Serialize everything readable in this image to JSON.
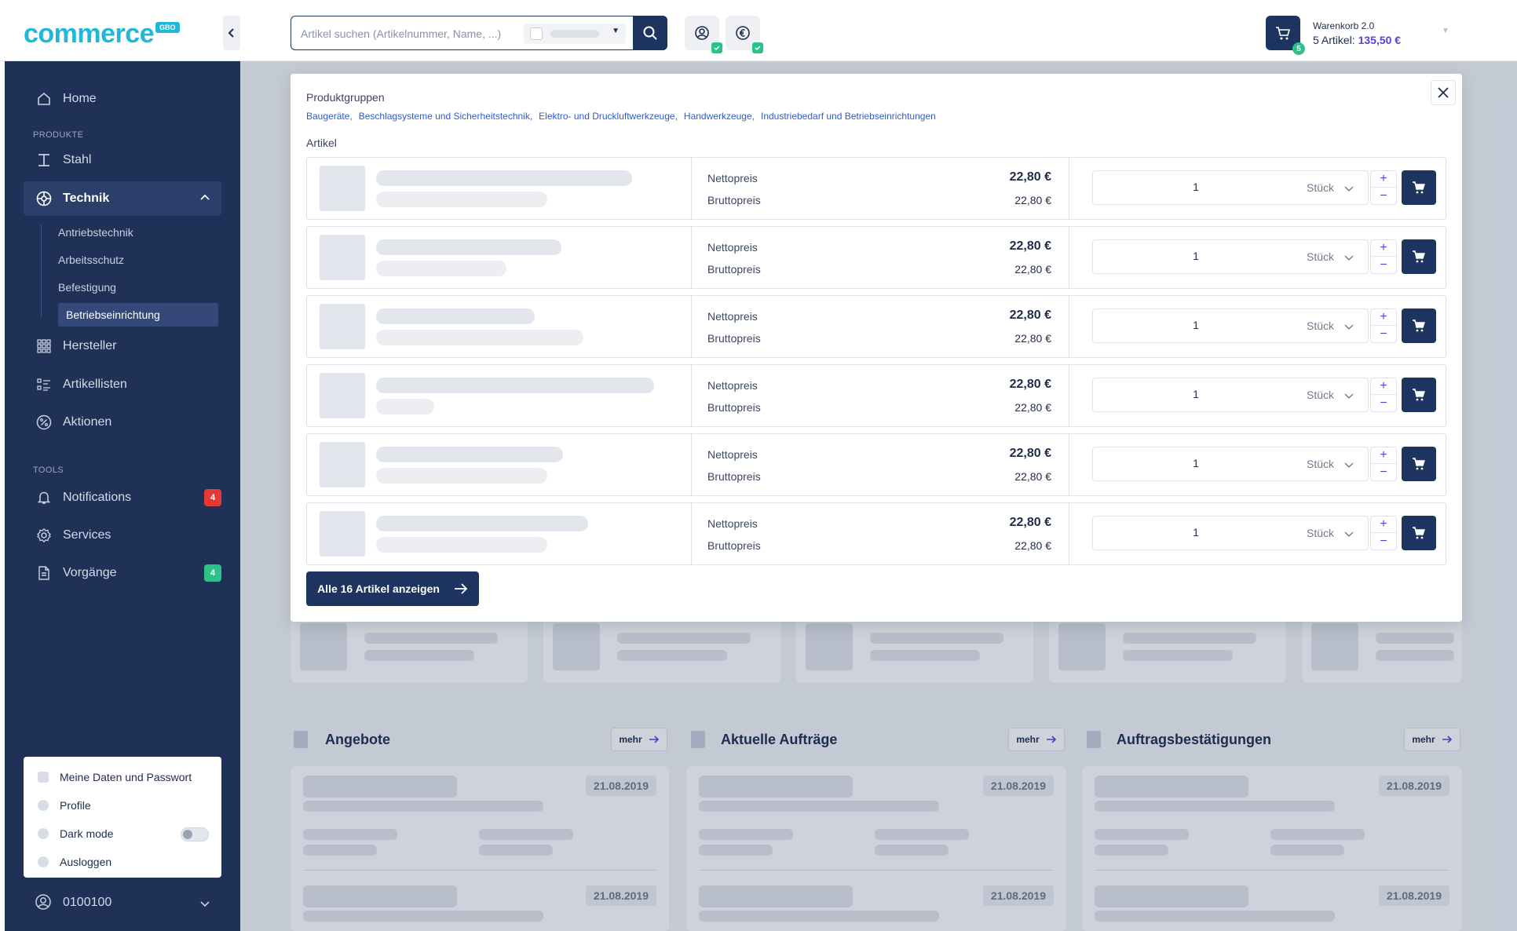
{
  "header": {
    "logo_text": "commerce",
    "logo_badge": "GBO",
    "search": {
      "placeholder": "Artikel suchen (Artikelnummer, Name, ...)"
    },
    "cart": {
      "title": "Warenkorb 2.0",
      "summary_prefix": "5 Artikel: ",
      "amount": "135,50 €",
      "count": "5"
    },
    "icons": [
      "user-circle-icon",
      "euro-circle-icon"
    ]
  },
  "sidebar": {
    "home": "Home",
    "section_products": "PRODUKTE",
    "stahl": "Stahl",
    "technik": "Technik",
    "sub": [
      "Antriebstechnik",
      "Arbeitsschutz",
      "Befestigung",
      "Betriebseinrichtung"
    ],
    "hersteller": "Hersteller",
    "artikellisten": "Artikellisten",
    "aktionen": "Aktionen",
    "section_tools": "TOOLS",
    "notifications": "Notifications",
    "notifications_badge": "4",
    "services": "Services",
    "vorgaenge": "Vorgänge",
    "vorgaenge_badge": "4",
    "user_menu": [
      "Meine Daten und Passwort",
      "Profile",
      "Dark mode",
      "Ausloggen"
    ],
    "user_id": "0100100"
  },
  "modal": {
    "groups_heading": "Produktgruppen",
    "groups": [
      "Baugeräte,",
      "Beschlagsysteme und Sicherheitstechnik,",
      "Elektro- und Druckluftwerkzeuge,",
      "Handwerkzeuge,",
      "Industriebedarf und Betriebseinrichtungen"
    ],
    "articles_heading": "Artikel",
    "net_label": "Nettopreis",
    "gross_label": "Bruttopreis",
    "rows": [
      {
        "net": "22,80 €",
        "gross": "22,80 €",
        "qty": "1",
        "unit": "Stück"
      },
      {
        "net": "22,80 €",
        "gross": "22,80 €",
        "qty": "1",
        "unit": "Stück"
      },
      {
        "net": "22,80 €",
        "gross": "22,80 €",
        "qty": "1",
        "unit": "Stück"
      },
      {
        "net": "22,80 €",
        "gross": "22,80 €",
        "qty": "1",
        "unit": "Stück"
      },
      {
        "net": "22,80 €",
        "gross": "22,80 €",
        "qty": "1",
        "unit": "Stück"
      },
      {
        "net": "22,80 €",
        "gross": "22,80 €",
        "qty": "1",
        "unit": "Stück"
      }
    ],
    "all_button": "Alle 16 Artikel anzeigen"
  },
  "dashboard": {
    "sections": [
      "Angebote",
      "Aktuelle Aufträge",
      "Auftragsbestätigungen"
    ],
    "more_label": "mehr",
    "date": "21.08.2019"
  },
  "colors": {
    "navy": "#1d3461",
    "sidebar": "#1f3157",
    "accent": "#1fb8d8",
    "success": "#2bc38a",
    "danger": "#e53935",
    "link": "#2f5ccc",
    "amount": "#5b3fd6"
  }
}
